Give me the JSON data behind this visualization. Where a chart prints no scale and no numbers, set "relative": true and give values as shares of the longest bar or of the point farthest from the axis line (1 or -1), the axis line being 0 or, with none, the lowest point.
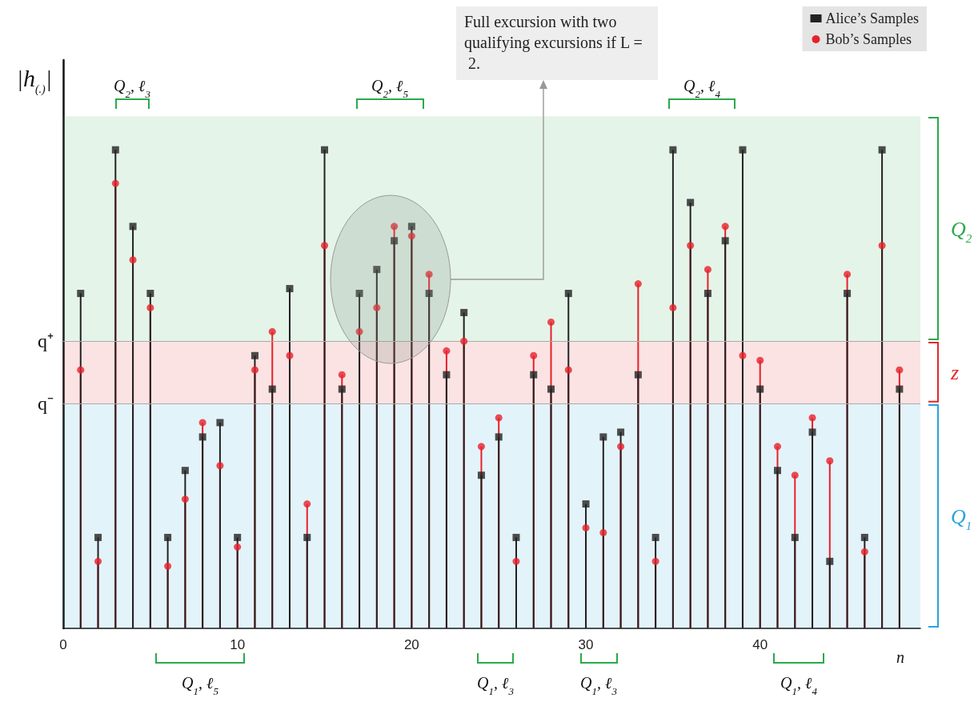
{
  "chart_data": {
    "type": "lollipop",
    "relative": true,
    "xlabel": "n",
    "ylabel": "|h$_{(.)}$|",
    "x": [
      1,
      2,
      3,
      4,
      5,
      6,
      7,
      8,
      9,
      10,
      11,
      12,
      13,
      14,
      15,
      16,
      17,
      18,
      19,
      20,
      21,
      22,
      23,
      24,
      25,
      26,
      27,
      28,
      29,
      30,
      31,
      32,
      33,
      34,
      35,
      36,
      37,
      38,
      39,
      40,
      41,
      42,
      43,
      44,
      45,
      46,
      47,
      48
    ],
    "xlim": [
      0,
      49.2
    ],
    "xticks": [
      0,
      10,
      20,
      30,
      40
    ],
    "series": [
      {
        "name": "Alice’s Samples",
        "color": "#222222",
        "marker": "square",
        "values": [
          0.7,
          0.19,
          1.0,
          0.84,
          0.7,
          0.19,
          0.33,
          0.4,
          0.43,
          0.19,
          0.57,
          0.5,
          0.71,
          0.19,
          1.0,
          0.5,
          0.7,
          0.75,
          0.81,
          0.84,
          0.7,
          0.53,
          0.66,
          0.32,
          0.4,
          0.19,
          0.53,
          0.5,
          0.7,
          0.26,
          0.4,
          0.41,
          0.53,
          0.19,
          1.0,
          0.89,
          0.7,
          0.81,
          1.0,
          0.5,
          0.33,
          0.19,
          0.41,
          0.14,
          0.7,
          0.19,
          1.0,
          0.5
        ]
      },
      {
        "name": "Bob’s Samples",
        "color": "#e8202a",
        "marker": "circle",
        "values": [
          0.54,
          0.14,
          0.93,
          0.77,
          0.67,
          0.13,
          0.27,
          0.43,
          0.34,
          0.17,
          0.54,
          0.62,
          0.57,
          0.26,
          0.8,
          0.53,
          0.62,
          0.67,
          0.84,
          0.82,
          0.74,
          0.58,
          0.6,
          0.38,
          0.44,
          0.14,
          0.57,
          0.64,
          0.54,
          0.21,
          0.2,
          0.38,
          0.72,
          0.14,
          0.67,
          0.8,
          0.75,
          0.84,
          0.57,
          0.56,
          0.38,
          0.32,
          0.44,
          0.35,
          0.74,
          0.16,
          0.8,
          0.54
        ]
      }
    ],
    "bands": [
      {
        "axis": "y",
        "from": 0,
        "to": 0.47,
        "label": "Q$_{1}$",
        "color": "#29a3dc"
      },
      {
        "axis": "y",
        "from": 0.47,
        "to": 0.6,
        "label": "z",
        "color": "#e0282e"
      },
      {
        "axis": "y",
        "from": 0.6,
        "to": 1.07,
        "label": "Q$_{2}$",
        "color": "#2ca84c"
      }
    ],
    "ref_lines": [
      {
        "axis": "y",
        "value": 0.6,
        "label": "q⁺"
      },
      {
        "axis": "y",
        "value": 0.47,
        "label": "q⁻"
      }
    ],
    "annotations": [
      "Q$_{2}$, ℓ$_{3}$",
      "Q$_{2}$, ℓ$_{5}$",
      "Q$_{2}$, ℓ$_{4}$",
      "Q$_{1}$, ℓ$_{5}$",
      "Q$_{1}$, ℓ$_{3}$",
      "Q$_{1}$, ℓ$_{3}$",
      "Q$_{1}$, ℓ$_{4}$",
      "Full excursion with two qualifying excursions if L = 2."
    ],
    "legend": "top right",
    "grid": false
  }
}
